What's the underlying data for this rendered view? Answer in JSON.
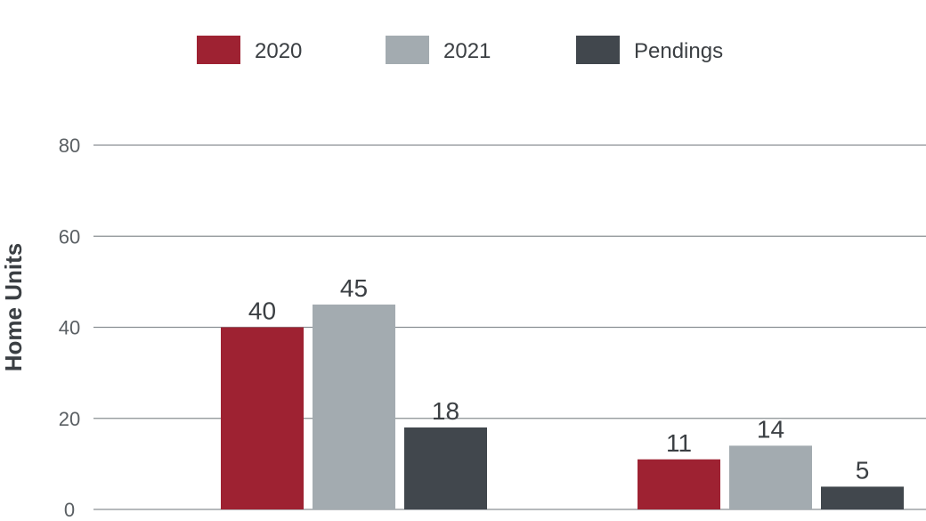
{
  "chart_data": {
    "type": "bar",
    "title": "",
    "xlabel": "",
    "ylabel": "Home Units",
    "ylim": [
      0,
      80
    ],
    "yticks": [
      0,
      20,
      40,
      60,
      80
    ],
    "grid": true,
    "legend_position": "top",
    "categories": [
      "",
      ""
    ],
    "series": [
      {
        "name": "2020",
        "color": "#9e2232",
        "values": [
          40,
          11
        ]
      },
      {
        "name": "2021",
        "color": "#a3abb0",
        "values": [
          45,
          14
        ]
      },
      {
        "name": "Pendings",
        "color": "#41474d",
        "values": [
          18,
          5
        ]
      }
    ]
  }
}
